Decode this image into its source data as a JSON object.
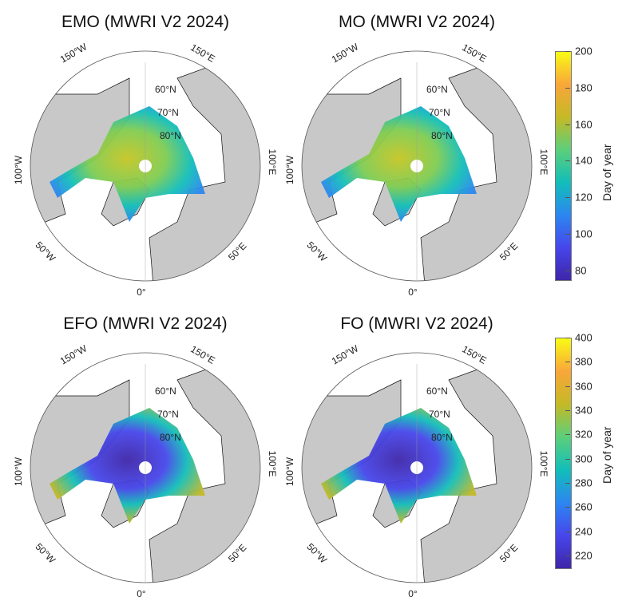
{
  "chart_data": [
    {
      "type": "heatmap",
      "projection": "north-polar-stereographic",
      "title": "EMO (MWRI V2 2024)",
      "variable": "EMO",
      "colorbar_group": "melt",
      "lat_labels": [
        "60°N",
        "70°N",
        "80°N"
      ],
      "lon_labels": [
        "150°W",
        "150°E",
        "100°W",
        "100°E",
        "50°W",
        "50°E",
        "0°"
      ]
    },
    {
      "type": "heatmap",
      "projection": "north-polar-stereographic",
      "title": "MO (MWRI V2 2024)",
      "variable": "MO",
      "colorbar_group": "melt",
      "lat_labels": [
        "60°N",
        "70°N",
        "80°N"
      ],
      "lon_labels": [
        "150°W",
        "150°E",
        "100°W",
        "100°E",
        "50°W",
        "50°E",
        "0°"
      ]
    },
    {
      "type": "heatmap",
      "projection": "north-polar-stereographic",
      "title": "EFO (MWRI V2 2024)",
      "variable": "EFO",
      "colorbar_group": "freeze",
      "lat_labels": [
        "60°N",
        "70°N",
        "80°N"
      ],
      "lon_labels": [
        "150°W",
        "150°E",
        "100°W",
        "100°E",
        "50°W",
        "50°E",
        "0°"
      ]
    },
    {
      "type": "heatmap",
      "projection": "north-polar-stereographic",
      "title": "FO (MWRI V2 2024)",
      "variable": "FO",
      "colorbar_group": "freeze",
      "lat_labels": [
        "60°N",
        "70°N",
        "80°N"
      ],
      "lon_labels": [
        "150°W",
        "150°E",
        "100°W",
        "100°E",
        "50°W",
        "50°E",
        "0°"
      ]
    }
  ],
  "colorbars": {
    "melt": {
      "label": "Day of year",
      "range": [
        75,
        200
      ],
      "ticks": [
        "200",
        "180",
        "160",
        "140",
        "120",
        "100",
        "80"
      ]
    },
    "freeze": {
      "label": "Day of year",
      "range": [
        210,
        400
      ],
      "ticks": [
        "400",
        "380",
        "360",
        "340",
        "320",
        "300",
        "280",
        "260",
        "240",
        "220"
      ]
    }
  },
  "colors": {
    "land": "#c8c8c8",
    "ocean": "#ffffff",
    "coast": "#111111",
    "parula_low": "#3e26a8",
    "parula_mid": "#12beb9",
    "parula_high": "#f9fb15"
  }
}
